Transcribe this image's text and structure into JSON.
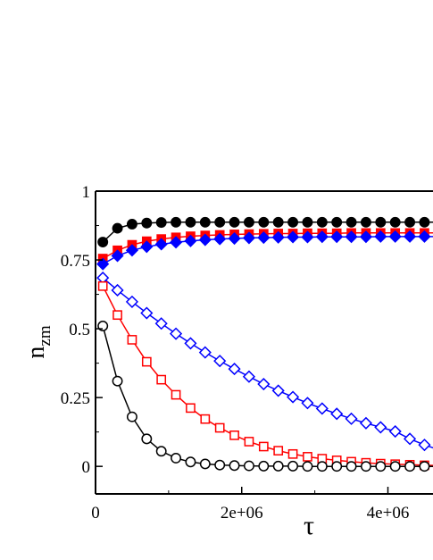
{
  "chart_data": {
    "type": "scatter",
    "title": "",
    "xlabel": "τ",
    "ylabel": "n",
    "ylabel_sub": "zm",
    "xlim": [
      0,
      4800000
    ],
    "ylim": [
      -0.1,
      1
    ],
    "x_ticks": [
      0,
      2000000,
      4000000
    ],
    "x_tick_labels": [
      "0",
      "2e+06",
      "4e+06"
    ],
    "y_ticks": [
      0,
      0.25,
      0.5,
      0.75,
      1
    ],
    "y_tick_labels": [
      "0",
      "0.25",
      "0.5",
      "0.75",
      "1"
    ],
    "grid": false,
    "legend": "none",
    "series": [
      {
        "marker": "circle",
        "filled": true,
        "color": "#000000",
        "x": [
          100000,
          300000,
          500000,
          700000,
          900000,
          1100000,
          1300000,
          1500000,
          1700000,
          1900000,
          2100000,
          2300000,
          2500000,
          2700000,
          2900000,
          3100000,
          3300000,
          3500000,
          3700000,
          3900000,
          4100000,
          4300000,
          4500000,
          4700000
        ],
        "y": [
          0.815,
          0.865,
          0.88,
          0.884,
          0.886,
          0.887,
          0.887,
          0.887,
          0.887,
          0.887,
          0.887,
          0.887,
          0.887,
          0.887,
          0.887,
          0.887,
          0.887,
          0.887,
          0.887,
          0.887,
          0.887,
          0.887,
          0.887,
          0.887
        ]
      },
      {
        "marker": "square",
        "filled": true,
        "color": "#ff0000",
        "x": [
          100000,
          300000,
          500000,
          700000,
          900000,
          1100000,
          1300000,
          1500000,
          1700000,
          1900000,
          2100000,
          2300000,
          2500000,
          2700000,
          2900000,
          3100000,
          3300000,
          3500000,
          3700000,
          3900000,
          4100000,
          4300000,
          4500000,
          4700000
        ],
        "y": [
          0.755,
          0.785,
          0.805,
          0.818,
          0.826,
          0.832,
          0.836,
          0.839,
          0.841,
          0.843,
          0.844,
          0.845,
          0.846,
          0.846,
          0.847,
          0.847,
          0.847,
          0.848,
          0.848,
          0.848,
          0.848,
          0.848,
          0.848,
          0.848
        ]
      },
      {
        "marker": "diamond",
        "filled": true,
        "color": "#0000ff",
        "x": [
          100000,
          300000,
          500000,
          700000,
          900000,
          1100000,
          1300000,
          1500000,
          1700000,
          1900000,
          2100000,
          2300000,
          2500000,
          2700000,
          2900000,
          3100000,
          3300000,
          3500000,
          3700000,
          3900000,
          4100000,
          4300000,
          4500000,
          4700000
        ],
        "y": [
          0.735,
          0.765,
          0.785,
          0.798,
          0.807,
          0.814,
          0.819,
          0.823,
          0.826,
          0.828,
          0.83,
          0.831,
          0.832,
          0.833,
          0.833,
          0.834,
          0.834,
          0.834,
          0.834,
          0.835,
          0.835,
          0.835,
          0.835,
          0.835
        ]
      },
      {
        "marker": "diamond",
        "filled": false,
        "color": "#0000ff",
        "x": [
          100000,
          300000,
          500000,
          700000,
          900000,
          1100000,
          1300000,
          1500000,
          1700000,
          1900000,
          2100000,
          2300000,
          2500000,
          2700000,
          2900000,
          3100000,
          3300000,
          3500000,
          3700000,
          3900000,
          4100000,
          4300000,
          4500000,
          4700000
        ],
        "y": [
          0.685,
          0.64,
          0.598,
          0.557,
          0.519,
          0.482,
          0.447,
          0.414,
          0.383,
          0.354,
          0.326,
          0.299,
          0.275,
          0.252,
          0.23,
          0.21,
          0.191,
          0.173,
          0.157,
          0.142,
          0.127,
          0.1,
          0.078,
          0.06
        ]
      },
      {
        "marker": "square",
        "filled": false,
        "color": "#ff0000",
        "x": [
          100000,
          300000,
          500000,
          700000,
          900000,
          1100000,
          1300000,
          1500000,
          1700000,
          1900000,
          2100000,
          2300000,
          2500000,
          2700000,
          2900000,
          3100000,
          3300000,
          3500000,
          3700000,
          3900000,
          4100000,
          4300000,
          4500000,
          4700000
        ],
        "y": [
          0.655,
          0.55,
          0.46,
          0.38,
          0.315,
          0.26,
          0.212,
          0.172,
          0.14,
          0.113,
          0.09,
          0.072,
          0.057,
          0.045,
          0.035,
          0.028,
          0.022,
          0.017,
          0.013,
          0.01,
          0.008,
          0.006,
          0.004,
          0.003
        ]
      },
      {
        "marker": "circle",
        "filled": false,
        "color": "#000000",
        "x": [
          100000,
          300000,
          500000,
          700000,
          900000,
          1100000,
          1300000,
          1500000,
          1700000,
          1900000,
          2100000,
          2300000,
          2500000,
          2700000,
          2900000,
          3100000,
          3300000,
          3500000,
          3700000,
          3900000,
          4100000,
          4300000,
          4500000,
          4700000
        ],
        "y": [
          0.51,
          0.31,
          0.18,
          0.1,
          0.055,
          0.03,
          0.016,
          0.009,
          0.005,
          0.003,
          0.002,
          0.001,
          0.001,
          0.001,
          0,
          0,
          0,
          0,
          0,
          0,
          0,
          0,
          0,
          0
        ]
      }
    ]
  }
}
